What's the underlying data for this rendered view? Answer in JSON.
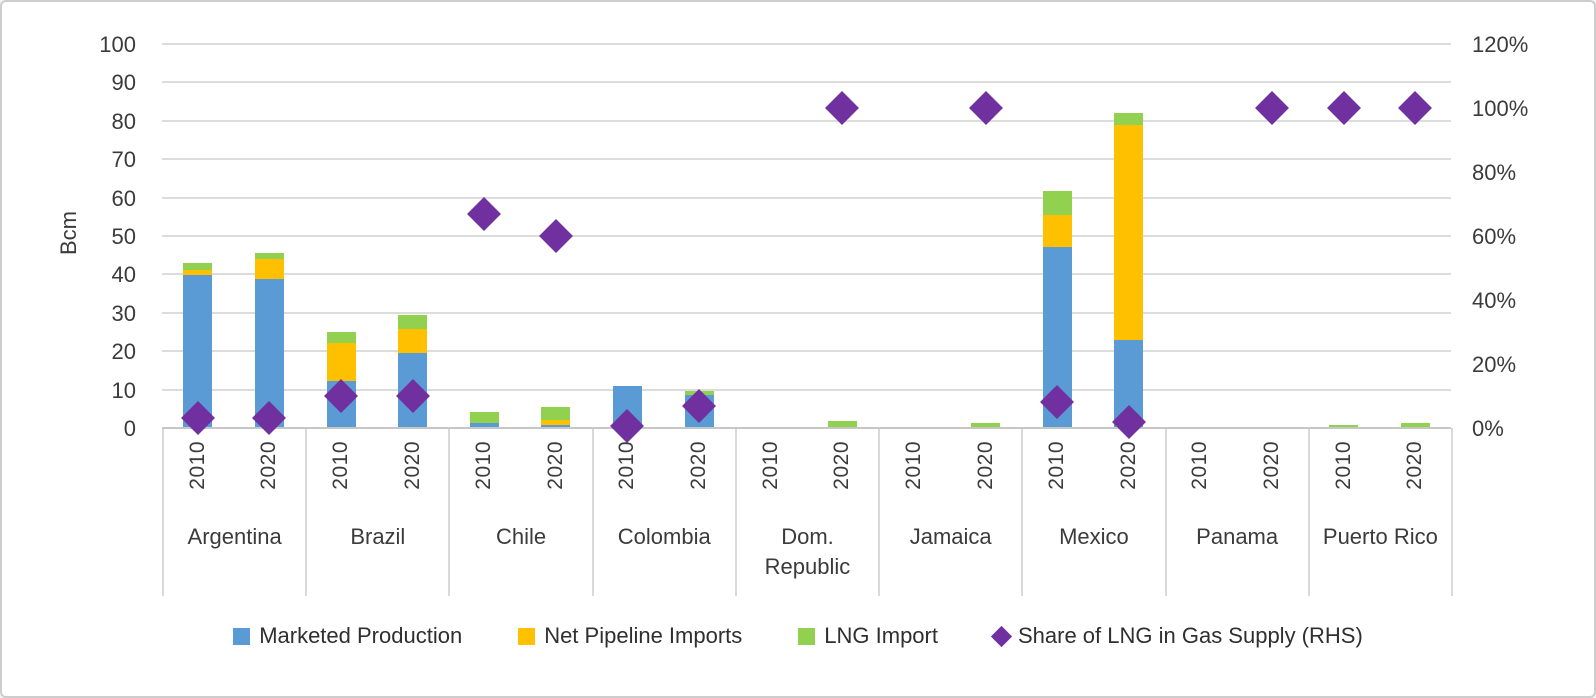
{
  "figure": {
    "background": "#ffffff",
    "frame_color": "#cdcdcd",
    "gridline_color": "#dcdcdc",
    "axis_line_color": "#c6c6c6",
    "text_color": "#3b3b3b"
  },
  "chart_data": {
    "type": "bar",
    "stacked": true,
    "grid": true,
    "legend_position": "bottom",
    "left_axis": {
      "label": "Bcm",
      "min": 0,
      "max": 100,
      "step": 10
    },
    "right_axis": {
      "min": 0,
      "max": 120,
      "step": 20,
      "suffix": "%"
    },
    "categories": [
      "Argentina",
      "Brazil",
      "Chile",
      "Colombia",
      "Dom.\nRepublic",
      "Jamaica",
      "Mexico",
      "Panama",
      "Puerto Rico"
    ],
    "year_labels": [
      "2010",
      "2020"
    ],
    "series": [
      {
        "name": "Marketed Production",
        "color": "#5B9BD5",
        "values": [
          39.8,
          38.7,
          12.3,
          19.5,
          1.2,
          0.9,
          11.0,
          8.5,
          0,
          0,
          0,
          0,
          47.2,
          23.0,
          0,
          0,
          0,
          0
        ]
      },
      {
        "name": "Net Pipeline Imports",
        "color": "#FFC000",
        "values": [
          1.4,
          5.4,
          9.8,
          6.2,
          0,
          1.1,
          0,
          0,
          0,
          0,
          0,
          0,
          8.4,
          56.0,
          0,
          0,
          0,
          0
        ]
      },
      {
        "name": "LNG Import",
        "color": "#92D050",
        "values": [
          1.9,
          1.6,
          2.8,
          3.7,
          3.0,
          3.5,
          0,
          1.2,
          0,
          1.8,
          0,
          1.2,
          6.1,
          3.0,
          0,
          0.2,
          0.7,
          1.2
        ]
      }
    ],
    "scatter_series": {
      "name": "Share of LNG in Gas Supply (RHS)",
      "color": "#7030A0",
      "axis": "right",
      "values": [
        3,
        3,
        10,
        10,
        67,
        60,
        0.5,
        7,
        null,
        100,
        null,
        100,
        8,
        2,
        null,
        100,
        100,
        100
      ]
    }
  },
  "legend": [
    {
      "label": "Marketed Production",
      "color": "#5B9BD5",
      "marker": "square"
    },
    {
      "label": "Net Pipeline Imports",
      "color": "#FFC000",
      "marker": "square"
    },
    {
      "label": "LNG Import",
      "color": "#92D050",
      "marker": "square"
    },
    {
      "label": "Share of LNG in Gas Supply (RHS)",
      "color": "#7030A0",
      "marker": "diamond"
    }
  ]
}
